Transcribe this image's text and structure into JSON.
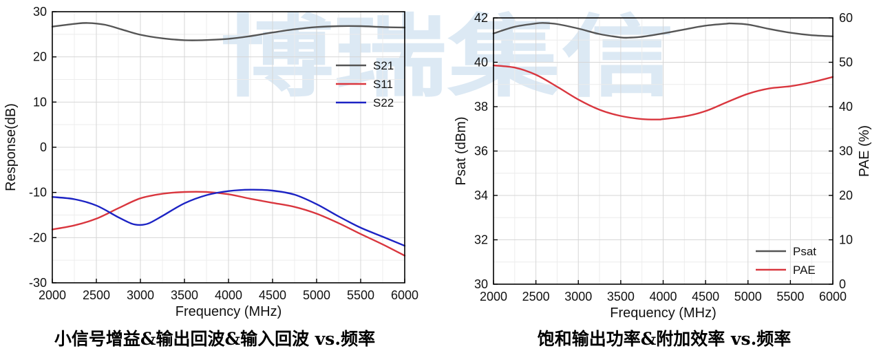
{
  "watermark": "博瑞集信",
  "chart_data": [
    {
      "type": "line",
      "caption": "小信号增益&输出回波&输入回波 vs.频率",
      "xlabel": "Frequency (MHz)",
      "ylabel": "Response(dB)",
      "xlim": [
        2000,
        6000
      ],
      "ylim": [
        -30,
        30
      ],
      "xticks": [
        2000,
        2500,
        3000,
        3500,
        4000,
        4500,
        5000,
        5500,
        6000
      ],
      "yticks": [
        -30,
        -20,
        -10,
        0,
        10,
        20,
        30
      ],
      "grid": true,
      "legend_position": "top-right",
      "series": [
        {
          "name": "S21",
          "color": "#555555",
          "x": [
            2000,
            2250,
            2400,
            2600,
            2800,
            3000,
            3250,
            3500,
            3700,
            4000,
            4250,
            4500,
            4750,
            5000,
            5250,
            5500,
            5750,
            6000
          ],
          "y": [
            26.7,
            27.3,
            27.5,
            27.1,
            26.0,
            24.9,
            24.1,
            23.7,
            23.7,
            24.0,
            24.6,
            25.4,
            26.1,
            26.6,
            26.8,
            26.8,
            26.6,
            26.5
          ]
        },
        {
          "name": "S11",
          "color": "#d9363e",
          "x": [
            2000,
            2250,
            2500,
            2750,
            3000,
            3250,
            3500,
            3750,
            4000,
            4250,
            4500,
            4750,
            5000,
            5250,
            5500,
            5750,
            6000
          ],
          "y": [
            -18.2,
            -17.3,
            -15.8,
            -13.5,
            -11.3,
            -10.3,
            -9.9,
            -9.9,
            -10.4,
            -11.4,
            -12.3,
            -13.2,
            -14.7,
            -16.8,
            -19.2,
            -21.5,
            -24.0
          ]
        },
        {
          "name": "S22",
          "color": "#1c23c4",
          "x": [
            2000,
            2250,
            2500,
            2750,
            2900,
            3000,
            3100,
            3250,
            3500,
            3750,
            4000,
            4250,
            4500,
            4750,
            5000,
            5250,
            5500,
            5750,
            6000
          ],
          "y": [
            -11.0,
            -11.5,
            -12.9,
            -15.5,
            -16.9,
            -17.2,
            -16.8,
            -15.2,
            -12.4,
            -10.6,
            -9.7,
            -9.4,
            -9.6,
            -10.5,
            -12.6,
            -15.3,
            -17.8,
            -19.8,
            -21.8
          ]
        }
      ]
    },
    {
      "type": "line",
      "caption": "饱和输出功率&附加效率 vs.频率",
      "xlabel": "Frequency (MHz)",
      "ylabel": "Psat (dBm)",
      "y2label": "PAE (%)",
      "xlim": [
        2000,
        6000
      ],
      "ylim": [
        30,
        42
      ],
      "y2lim": [
        0,
        60
      ],
      "xticks": [
        2000,
        2500,
        3000,
        3500,
        4000,
        4500,
        5000,
        5500,
        6000
      ],
      "yticks": [
        30,
        32,
        34,
        36,
        38,
        40,
        42
      ],
      "y2ticks": [
        0,
        10,
        20,
        30,
        40,
        50,
        60
      ],
      "grid": true,
      "legend_position": "bottom-right",
      "series": [
        {
          "name": "Psat",
          "color": "#555555",
          "axis": "left",
          "x": [
            2000,
            2250,
            2500,
            2600,
            2750,
            3000,
            3250,
            3500,
            3600,
            3750,
            4000,
            4250,
            4500,
            4750,
            4800,
            5000,
            5250,
            5500,
            5750,
            6000
          ],
          "y": [
            41.3,
            41.6,
            41.75,
            41.77,
            41.72,
            41.52,
            41.27,
            41.12,
            41.11,
            41.15,
            41.3,
            41.48,
            41.65,
            41.74,
            41.75,
            41.7,
            41.5,
            41.33,
            41.22,
            41.17
          ]
        },
        {
          "name": "PAE",
          "color": "#d9363e",
          "axis": "right",
          "x": [
            2000,
            2250,
            2500,
            2750,
            3000,
            3250,
            3500,
            3750,
            3950,
            4000,
            4250,
            4500,
            4750,
            5000,
            5250,
            5500,
            5750,
            6000
          ],
          "y": [
            49.3,
            48.8,
            47.2,
            44.5,
            41.6,
            39.3,
            37.9,
            37.2,
            37.1,
            37.2,
            37.8,
            39.0,
            41.0,
            42.9,
            44.1,
            44.6,
            45.5,
            46.7
          ]
        }
      ]
    }
  ]
}
